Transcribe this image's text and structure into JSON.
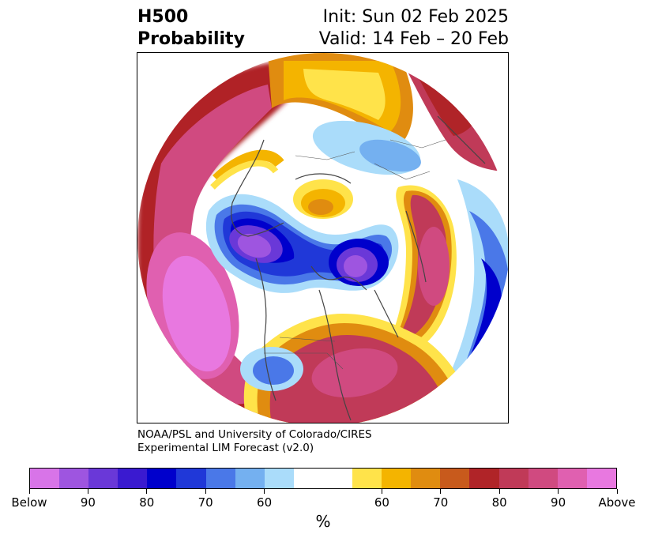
{
  "header": {
    "title_line1": "H500",
    "title_line2": "Probability",
    "init": "Init: Sun 02 Feb 2025",
    "valid": "Valid: 14 Feb – 20 Feb"
  },
  "credit": {
    "line1": "NOAA/PSL and University of Colorado/CIRES",
    "line2": "Experimental LIM Forecast (v2.0)"
  },
  "colorbar": {
    "colors": [
      "#d874e8",
      "#9e55e0",
      "#6a38d8",
      "#3a1ad0",
      "#0000cc",
      "#2038d8",
      "#4a78e8",
      "#74b0f0",
      "#aadcfa",
      "#ffffff",
      "#ffffff",
      "#ffe34a",
      "#f4b400",
      "#e08c10",
      "#c85a1c",
      "#b02428",
      "#c03a58",
      "#d04a80",
      "#e060b0",
      "#e878e0"
    ],
    "tick_labels": [
      "Below",
      "90",
      "80",
      "70",
      "60",
      "60",
      "70",
      "80",
      "90",
      "Above"
    ],
    "unit": "%"
  },
  "colors": {
    "below_high": "#d874e8",
    "below_low": "#aadcfa",
    "above_low": "#ffe34a",
    "above_high": "#e878e0",
    "coastline": "#444444"
  }
}
